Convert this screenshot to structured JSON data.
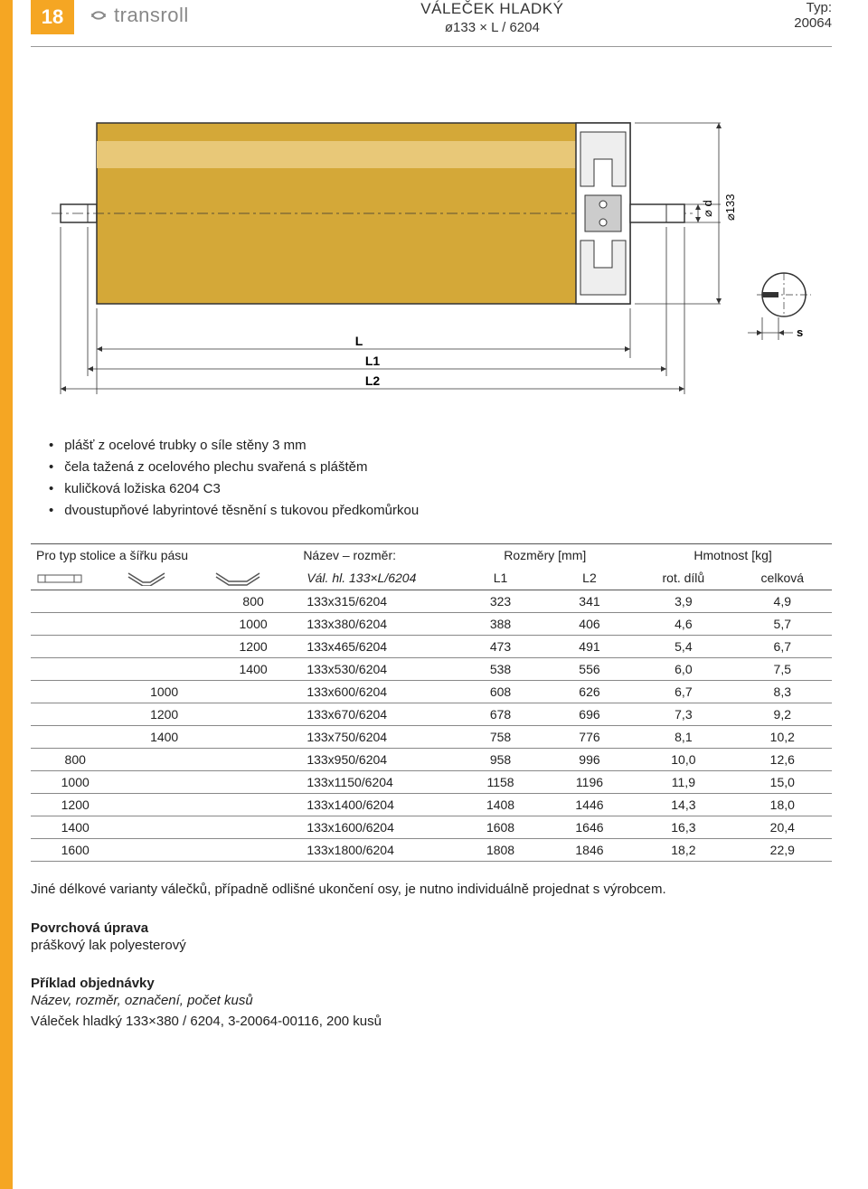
{
  "page_number": "18",
  "logo_text": "transroll",
  "header": {
    "title": "VÁLEČEK HLADKÝ",
    "subtitle": "ø133 × L / 6204",
    "typ_label": "Typ:",
    "typ_value": "20064"
  },
  "diagram": {
    "labels": {
      "L": "L",
      "L1": "L1",
      "L2": "L2",
      "dia_d": "⌀ d",
      "dia133": "⌀133",
      "s": "s"
    },
    "roller_fill": "#d4a838",
    "stroke": "#333333",
    "bg": "#ffffff"
  },
  "bullets": [
    "plášť z ocelové trubky o síle stěny 3 mm",
    "čela tažená z ocelového plechu svařená s pláštěm",
    "kuličková ložiska 6204 C3",
    "dvoustupňové labyrintové těsnění s tukovou předkomůrkou"
  ],
  "table": {
    "headers": {
      "stolice": "Pro typ stolice a šířku pásu",
      "nazev_top": "Název – rozměr:",
      "nazev_bot": "Vál. hl. 133×L/6204",
      "rozmery": "Rozměry [mm]",
      "L1": "L1",
      "L2": "L2",
      "hmotnost": "Hmotnost [kg]",
      "rot": "rot. dílů",
      "celk": "celková"
    },
    "rows": [
      {
        "a": "",
        "b": "",
        "c": "800",
        "nazev": "133x315/6204",
        "l1": "323",
        "l2": "341",
        "rot": "3,9",
        "celk": "4,9"
      },
      {
        "a": "",
        "b": "",
        "c": "1000",
        "nazev": "133x380/6204",
        "l1": "388",
        "l2": "406",
        "rot": "4,6",
        "celk": "5,7"
      },
      {
        "a": "",
        "b": "",
        "c": "1200",
        "nazev": "133x465/6204",
        "l1": "473",
        "l2": "491",
        "rot": "5,4",
        "celk": "6,7"
      },
      {
        "a": "",
        "b": "",
        "c": "1400",
        "nazev": "133x530/6204",
        "l1": "538",
        "l2": "556",
        "rot": "6,0",
        "celk": "7,5"
      },
      {
        "a": "",
        "b": "1000",
        "c": "",
        "nazev": "133x600/6204",
        "l1": "608",
        "l2": "626",
        "rot": "6,7",
        "celk": "8,3"
      },
      {
        "a": "",
        "b": "1200",
        "c": "",
        "nazev": "133x670/6204",
        "l1": "678",
        "l2": "696",
        "rot": "7,3",
        "celk": "9,2"
      },
      {
        "a": "",
        "b": "1400",
        "c": "",
        "nazev": "133x750/6204",
        "l1": "758",
        "l2": "776",
        "rot": "8,1",
        "celk": "10,2"
      },
      {
        "a": "800",
        "b": "",
        "c": "",
        "nazev": "133x950/6204",
        "l1": "958",
        "l2": "996",
        "rot": "10,0",
        "celk": "12,6"
      },
      {
        "a": "1000",
        "b": "",
        "c": "",
        "nazev": "133x1150/6204",
        "l1": "1158",
        "l2": "1196",
        "rot": "11,9",
        "celk": "15,0"
      },
      {
        "a": "1200",
        "b": "",
        "c": "",
        "nazev": "133x1400/6204",
        "l1": "1408",
        "l2": "1446",
        "rot": "14,3",
        "celk": "18,0"
      },
      {
        "a": "1400",
        "b": "",
        "c": "",
        "nazev": "133x1600/6204",
        "l1": "1608",
        "l2": "1646",
        "rot": "16,3",
        "celk": "20,4"
      },
      {
        "a": "1600",
        "b": "",
        "c": "",
        "nazev": "133x1800/6204",
        "l1": "1808",
        "l2": "1846",
        "rot": "18,2",
        "celk": "22,9"
      }
    ]
  },
  "note": "Jiné délkové varianty válečků, případně odlišné ukončení osy, je nutno individuálně projednat s výrobcem.",
  "povrch": {
    "heading": "Povrchová úprava",
    "body": "práškový lak polyesterový"
  },
  "priklad": {
    "heading": "Příklad objednávky",
    "line1": "Název, rozměr, označení, počet kusů",
    "line2": "Váleček hladký 133×380 / 6204, 3-20064-00116, 200 kusů"
  }
}
